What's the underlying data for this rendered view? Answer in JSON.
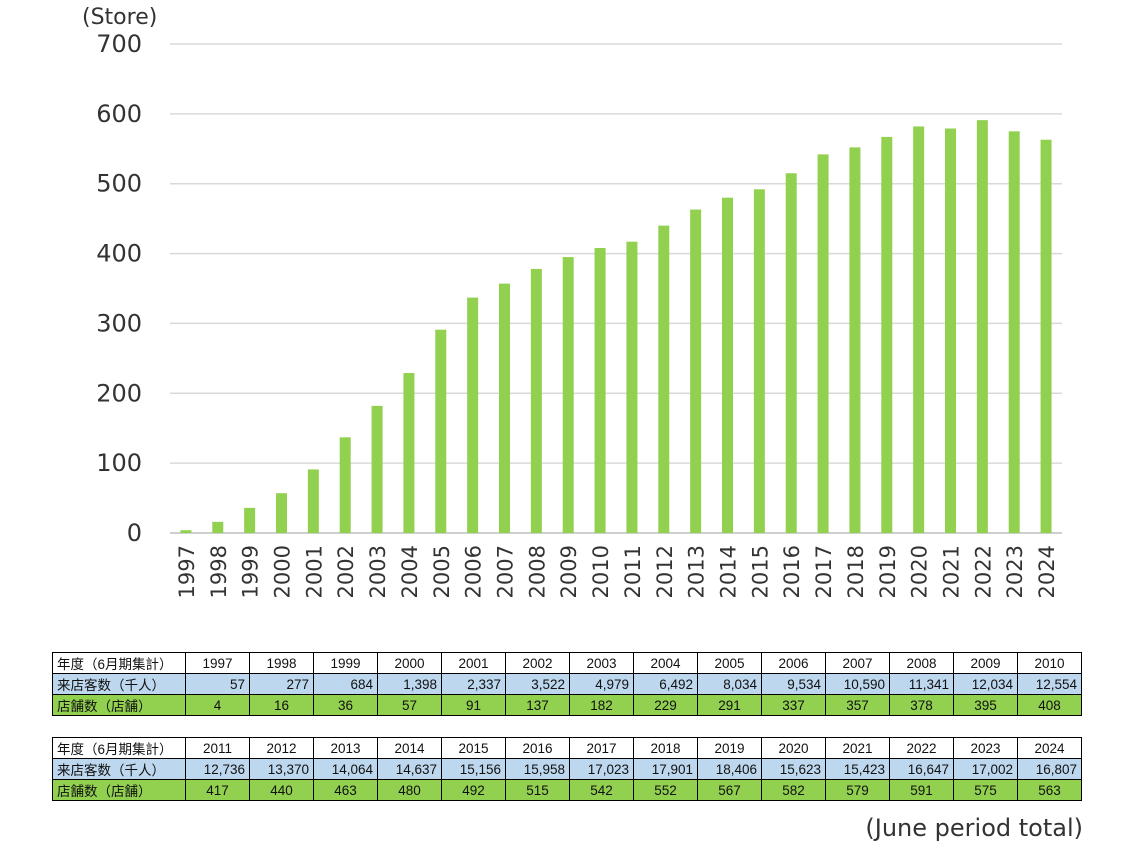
{
  "chart_data": {
    "type": "bar",
    "unit_label": "(Store)",
    "categories": [
      "1997",
      "1998",
      "1999",
      "2000",
      "2001",
      "2002",
      "2003",
      "2004",
      "2005",
      "2006",
      "2007",
      "2008",
      "2009",
      "2010",
      "2011",
      "2012",
      "2013",
      "2014",
      "2015",
      "2016",
      "2017",
      "2018",
      "2019",
      "2020",
      "2021",
      "2022",
      "2023",
      "2024"
    ],
    "values": [
      4,
      16,
      36,
      57,
      91,
      137,
      182,
      229,
      291,
      337,
      357,
      378,
      395,
      408,
      417,
      440,
      463,
      480,
      492,
      515,
      542,
      552,
      567,
      582,
      579,
      591,
      575,
      563
    ],
    "ylim": [
      0,
      700
    ],
    "yticks": [
      0,
      100,
      200,
      300,
      400,
      500,
      600,
      700
    ],
    "grid": true,
    "bar_color": "#92d050",
    "grid_color": "#d9d9d9"
  },
  "table": {
    "header_label": "年度（6月期集計）",
    "visitors_label": "来店客数（千人）",
    "stores_label": "店舗数（店舗）",
    "blocks": [
      {
        "years": [
          "1997",
          "1998",
          "1999",
          "2000",
          "2001",
          "2002",
          "2003",
          "2004",
          "2005",
          "2006",
          "2007",
          "2008",
          "2009",
          "2010"
        ],
        "visitors": [
          "57",
          "277",
          "684",
          "1,398",
          "2,337",
          "3,522",
          "4,979",
          "6,492",
          "8,034",
          "9,534",
          "10,590",
          "11,341",
          "12,034",
          "12,554"
        ],
        "stores": [
          "4",
          "16",
          "36",
          "57",
          "91",
          "137",
          "182",
          "229",
          "291",
          "337",
          "357",
          "378",
          "395",
          "408"
        ]
      },
      {
        "years": [
          "2011",
          "2012",
          "2013",
          "2014",
          "2015",
          "2016",
          "2017",
          "2018",
          "2019",
          "2020",
          "2021",
          "2022",
          "2023",
          "2024"
        ],
        "visitors": [
          "12,736",
          "13,370",
          "14,064",
          "14,637",
          "15,156",
          "15,958",
          "17,023",
          "17,901",
          "18,406",
          "15,623",
          "15,423",
          "16,647",
          "17,002",
          "16,807"
        ],
        "stores": [
          "417",
          "440",
          "463",
          "480",
          "492",
          "515",
          "542",
          "552",
          "567",
          "582",
          "579",
          "591",
          "575",
          "563"
        ]
      }
    ]
  },
  "footnote": "(June period total)"
}
